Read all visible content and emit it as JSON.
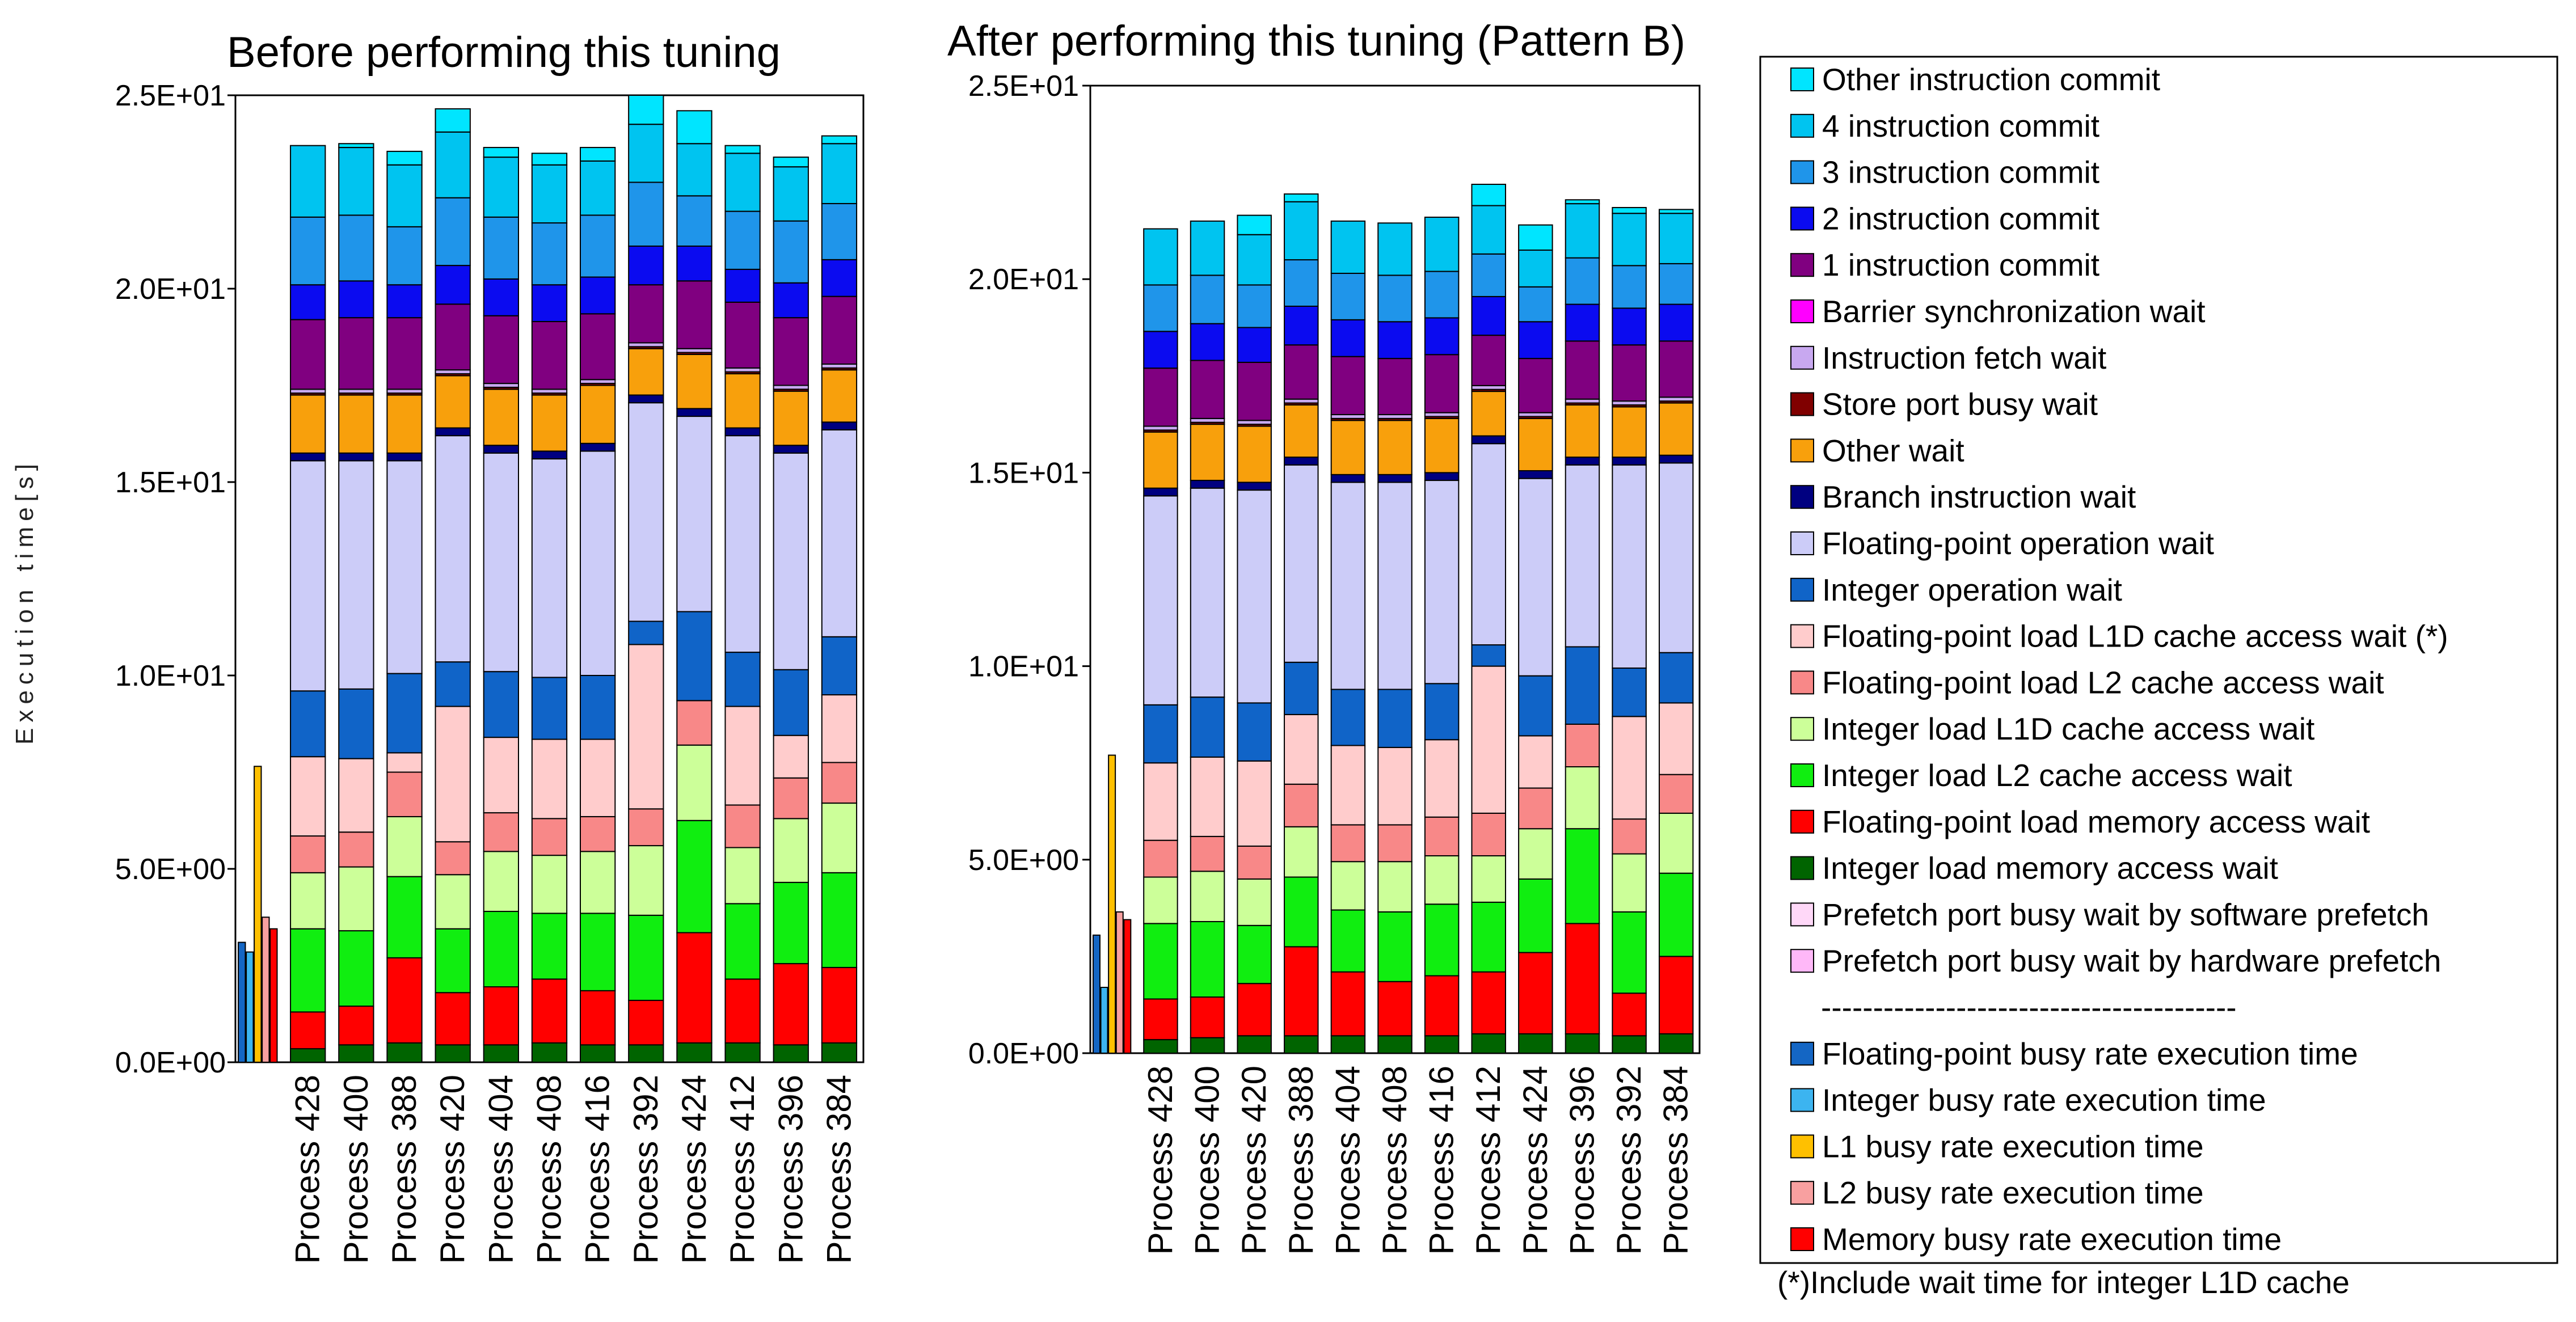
{
  "charts": [
    {
      "title": "Before performing this tuning",
      "ylabel": "Execution time[s]",
      "yticks": [
        "0.0E+00",
        "5.0E+00",
        "1.0E+01",
        "1.5E+01",
        "2.0E+01",
        "2.5E+01"
      ]
    },
    {
      "title": "After performing this tuning (Pattern B)",
      "ylabel": "",
      "yticks": [
        "0.0E+00",
        "5.0E+00",
        "1.0E+01",
        "1.5E+01",
        "2.0E+01",
        "2.5E+01"
      ]
    }
  ],
  "legend": {
    "separator": "----------------------------------------",
    "note": "(*)Include wait time for integer L1D cache",
    "wait_items": [
      {
        "label": "Other instruction commit",
        "color": "#00e5ff"
      },
      {
        "label": "4 instruction commit",
        "color": "#00c4f0"
      },
      {
        "label": "3 instruction commit",
        "color": "#1f95ea"
      },
      {
        "label": "2 instruction commit",
        "color": "#0b0bf0"
      },
      {
        "label": "1 instruction commit",
        "color": "#800080"
      },
      {
        "label": "Barrier synchronization wait",
        "color": "#ff00ff"
      },
      {
        "label": "Instruction fetch wait",
        "color": "#c8a8f0"
      },
      {
        "label": "Store port busy wait",
        "color": "#800000"
      },
      {
        "label": "Other wait",
        "color": "#f8a00c"
      },
      {
        "label": "Branch instruction wait",
        "color": "#000080"
      },
      {
        "label": "Floating-point operation wait",
        "color": "#ccccf8"
      },
      {
        "label": "Integer operation wait",
        "color": "#1064c8"
      },
      {
        "label": "Floating-point load L1D cache access wait (*)",
        "color": "#ffcccc"
      },
      {
        "label": "Floating-point load L2 cache access wait",
        "color": "#f88888"
      },
      {
        "label": "Integer load L1D cache access wait",
        "color": "#ccff99"
      },
      {
        "label": "Integer load L2 cache access wait",
        "color": "#10ee10"
      },
      {
        "label": "Floating-point load memory access wait",
        "color": "#ff0000"
      },
      {
        "label": "Integer load memory access wait",
        "color": "#006400"
      },
      {
        "label": "Prefetch port busy wait by software prefetch",
        "color": "#ffd8f8"
      },
      {
        "label": "Prefetch port busy wait by hardware prefetch",
        "color": "#ffb8f8"
      }
    ],
    "busy_items": [
      {
        "label": "Floating-point busy rate execution time",
        "color": "#1466c4"
      },
      {
        "label": "Integer busy rate execution time",
        "color": "#3cb4f0"
      },
      {
        "label": "L1 busy rate execution time",
        "color": "#ffc000"
      },
      {
        "label": "L2 busy rate execution time",
        "color": "#f8a0a0"
      },
      {
        "label": "Memory busy rate execution time",
        "color": "#ff0000"
      }
    ]
  },
  "chart_data": [
    {
      "type": "bar",
      "stacked": true,
      "title": "Before performing this tuning",
      "ylabel": "Execution time[s]",
      "ylim": [
        0,
        25
      ],
      "busy_rate_values": [
        3.1,
        2.85,
        7.65,
        3.75,
        3.45
      ],
      "categories": [
        "Process 428",
        "Process 400",
        "Process 388",
        "Process 420",
        "Process 404",
        "Process 408",
        "Process 416",
        "Process 392",
        "Process 424",
        "Process 412",
        "Process 396",
        "Process 384"
      ],
      "series": [
        {
          "name": "Integer load memory access wait",
          "values": [
            0.35,
            0.45,
            0.5,
            0.45,
            0.45,
            0.5,
            0.45,
            0.45,
            0.5,
            0.5,
            0.45,
            0.5
          ]
        },
        {
          "name": "Floating-point load memory access wait",
          "values": [
            0.95,
            1.0,
            2.2,
            1.35,
            1.5,
            1.65,
            1.4,
            1.15,
            2.85,
            1.65,
            2.1,
            1.95
          ]
        },
        {
          "name": "Integer load L2 cache access wait",
          "values": [
            2.15,
            1.95,
            2.1,
            1.65,
            1.95,
            1.7,
            2.0,
            2.2,
            2.9,
            1.95,
            2.1,
            2.45
          ]
        },
        {
          "name": "Integer load L1D cache access wait",
          "values": [
            1.45,
            1.65,
            1.55,
            1.4,
            1.55,
            1.5,
            1.6,
            1.8,
            1.95,
            1.45,
            1.65,
            1.8
          ]
        },
        {
          "name": "Floating-point load L2 cache access wait",
          "values": [
            0.95,
            0.9,
            1.15,
            0.85,
            1.0,
            0.95,
            0.9,
            0.95,
            1.15,
            1.1,
            1.05,
            1.05
          ]
        },
        {
          "name": "Floating-point load L1D cache access wait (*)",
          "values": [
            2.05,
            1.9,
            0.5,
            3.5,
            1.95,
            2.05,
            2.0,
            4.25,
            0,
            2.55,
            1.1,
            1.75
          ]
        },
        {
          "name": "Integer operation wait",
          "values": [
            1.7,
            1.8,
            2.05,
            1.15,
            1.7,
            1.6,
            1.65,
            0.6,
            2.3,
            1.4,
            1.7,
            1.5
          ]
        },
        {
          "name": "Floating-point operation wait",
          "values": [
            5.95,
            5.9,
            5.5,
            5.85,
            5.65,
            5.65,
            5.8,
            5.65,
            5.05,
            5.6,
            5.6,
            5.35
          ]
        },
        {
          "name": "Branch instruction wait",
          "values": [
            0.2,
            0.2,
            0.2,
            0.2,
            0.2,
            0.2,
            0.2,
            0.2,
            0.2,
            0.2,
            0.2,
            0.2
          ]
        },
        {
          "name": "Other wait",
          "values": [
            1.5,
            1.5,
            1.5,
            1.35,
            1.45,
            1.45,
            1.5,
            1.2,
            1.4,
            1.4,
            1.4,
            1.35
          ]
        },
        {
          "name": "Store port busy wait",
          "values": [
            0.05,
            0.05,
            0.05,
            0.05,
            0.05,
            0.05,
            0.05,
            0.05,
            0.05,
            0.05,
            0.05,
            0.05
          ]
        },
        {
          "name": "Instruction fetch wait",
          "values": [
            0.1,
            0.1,
            0.1,
            0.1,
            0.1,
            0.1,
            0.1,
            0.1,
            0.1,
            0.1,
            0.1,
            0.1
          ]
        },
        {
          "name": "Barrier synchronization wait",
          "values": [
            0,
            0,
            0,
            0,
            0,
            0,
            0,
            0,
            0,
            0,
            0,
            0
          ]
        },
        {
          "name": "1 instruction commit",
          "values": [
            1.8,
            1.85,
            1.85,
            1.7,
            1.75,
            1.75,
            1.7,
            1.5,
            1.75,
            1.7,
            1.75,
            1.75
          ]
        },
        {
          "name": "2 instruction commit",
          "values": [
            0.9,
            0.95,
            0.85,
            1.0,
            0.95,
            0.95,
            0.95,
            1.0,
            0.9,
            0.85,
            0.9,
            0.95
          ]
        },
        {
          "name": "3 instruction commit",
          "values": [
            1.75,
            1.7,
            1.5,
            1.75,
            1.6,
            1.6,
            1.6,
            1.65,
            1.3,
            1.5,
            1.6,
            1.45
          ]
        },
        {
          "name": "4 instruction commit",
          "values": [
            1.85,
            1.75,
            1.6,
            1.7,
            1.55,
            1.5,
            1.4,
            1.5,
            1.35,
            1.5,
            1.4,
            1.55
          ]
        },
        {
          "name": "Other instruction commit",
          "values": [
            0,
            0.1,
            0.35,
            0.6,
            0.25,
            0.3,
            0.35,
            0.75,
            0.85,
            0.2,
            0.25,
            0.2
          ]
        }
      ]
    },
    {
      "type": "bar",
      "stacked": true,
      "title": "After performing this tuning (Pattern B)",
      "ylim": [
        0,
        25
      ],
      "busy_rate_values": [
        3.05,
        1.7,
        7.7,
        3.65,
        3.45
      ],
      "categories": [
        "Process 428",
        "Process 400",
        "Process 420",
        "Process 388",
        "Process 404",
        "Process 408",
        "Process 416",
        "Process 412",
        "Process 424",
        "Process 396",
        "Process 392",
        "Process 384"
      ],
      "series": [
        {
          "name": "Integer load memory access wait",
          "values": [
            0.35,
            0.4,
            0.45,
            0.45,
            0.45,
            0.45,
            0.45,
            0.5,
            0.5,
            0.5,
            0.45,
            0.5
          ]
        },
        {
          "name": "Floating-point load memory access wait",
          "values": [
            1.05,
            1.05,
            1.35,
            2.3,
            1.65,
            1.4,
            1.55,
            1.6,
            2.1,
            2.85,
            1.1,
            2.0
          ]
        },
        {
          "name": "Integer load L2 cache access wait",
          "values": [
            1.95,
            1.95,
            1.5,
            1.8,
            1.6,
            1.8,
            1.85,
            1.8,
            1.9,
            2.45,
            2.1,
            2.15
          ]
        },
        {
          "name": "Integer load L1D cache access wait",
          "values": [
            1.2,
            1.3,
            1.2,
            1.3,
            1.25,
            1.3,
            1.25,
            1.2,
            1.3,
            1.6,
            1.5,
            1.55
          ]
        },
        {
          "name": "Floating-point load L2 cache access wait",
          "values": [
            0.95,
            0.9,
            0.85,
            1.1,
            0.95,
            0.95,
            1.0,
            1.1,
            1.05,
            1.1,
            0.9,
            1.0
          ]
        },
        {
          "name": "Floating-point load L1D cache access wait (*)",
          "values": [
            2.0,
            2.05,
            2.2,
            1.8,
            2.05,
            2.0,
            2.0,
            3.8,
            1.35,
            0,
            2.65,
            1.85
          ]
        },
        {
          "name": "Integer operation wait",
          "values": [
            1.5,
            1.55,
            1.5,
            1.35,
            1.45,
            1.5,
            1.45,
            0.55,
            1.55,
            2.0,
            1.25,
            1.3
          ]
        },
        {
          "name": "Floating-point operation wait",
          "values": [
            5.4,
            5.4,
            5.5,
            5.1,
            5.35,
            5.35,
            5.25,
            5.2,
            5.1,
            4.7,
            5.25,
            4.9
          ]
        },
        {
          "name": "Branch instruction wait",
          "values": [
            0.2,
            0.2,
            0.2,
            0.2,
            0.2,
            0.2,
            0.2,
            0.2,
            0.2,
            0.2,
            0.2,
            0.2
          ]
        },
        {
          "name": "Other wait",
          "values": [
            1.45,
            1.45,
            1.45,
            1.35,
            1.4,
            1.4,
            1.4,
            1.15,
            1.35,
            1.35,
            1.3,
            1.35
          ]
        },
        {
          "name": "Store port busy wait",
          "values": [
            0.05,
            0.05,
            0.05,
            0.05,
            0.05,
            0.05,
            0.05,
            0.05,
            0.05,
            0.05,
            0.05,
            0.05
          ]
        },
        {
          "name": "Instruction fetch wait",
          "values": [
            0.1,
            0.1,
            0.1,
            0.1,
            0.1,
            0.1,
            0.1,
            0.1,
            0.1,
            0.1,
            0.1,
            0.1
          ]
        },
        {
          "name": "Barrier synchronization wait",
          "values": [
            0,
            0,
            0,
            0,
            0,
            0,
            0,
            0,
            0,
            0,
            0,
            0
          ]
        },
        {
          "name": "1 instruction commit",
          "values": [
            1.5,
            1.5,
            1.5,
            1.4,
            1.5,
            1.45,
            1.5,
            1.3,
            1.4,
            1.5,
            1.45,
            1.45
          ]
        },
        {
          "name": "2 instruction commit",
          "values": [
            0.95,
            0.95,
            0.9,
            1.0,
            0.95,
            0.95,
            0.95,
            1.0,
            0.95,
            0.95,
            0.95,
            0.95
          ]
        },
        {
          "name": "3 instruction commit",
          "values": [
            1.2,
            1.25,
            1.1,
            1.2,
            1.2,
            1.2,
            1.2,
            1.1,
            0.9,
            1.2,
            1.1,
            1.05
          ]
        },
        {
          "name": "4 instruction commit",
          "values": [
            1.45,
            1.4,
            1.3,
            1.5,
            1.35,
            1.35,
            1.4,
            1.25,
            0.95,
            1.4,
            1.35,
            1.3
          ]
        },
        {
          "name": "Other instruction commit",
          "values": [
            0,
            0,
            0.5,
            0.2,
            0,
            0,
            0,
            0.55,
            0.65,
            0.1,
            0.15,
            0.1
          ]
        }
      ]
    }
  ]
}
